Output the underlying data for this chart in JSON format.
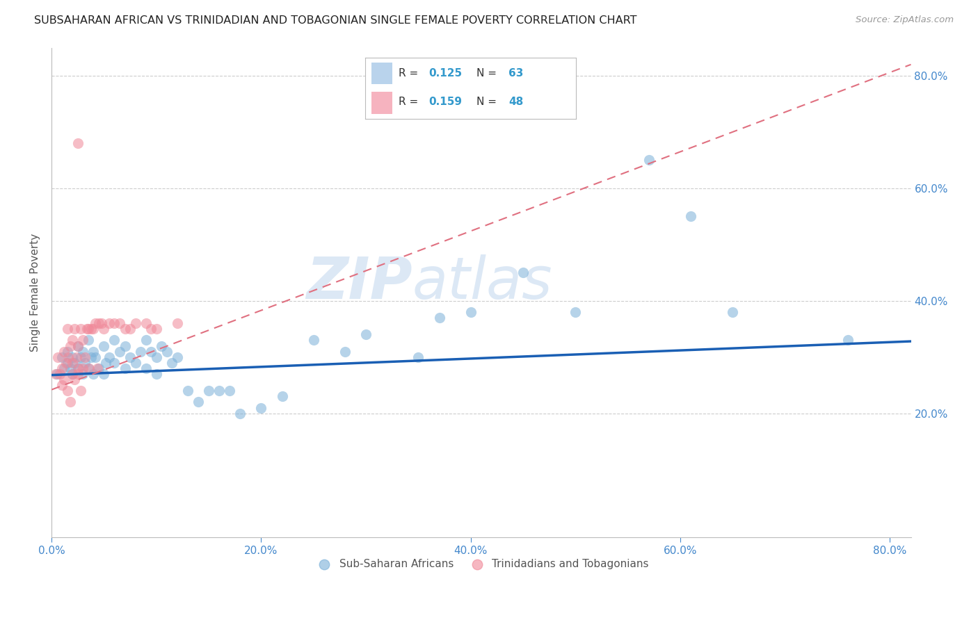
{
  "title": "SUBSAHARAN AFRICAN VS TRINIDADIAN AND TOBAGONIAN SINGLE FEMALE POVERTY CORRELATION CHART",
  "source": "Source: ZipAtlas.com",
  "ylabel": "Single Female Poverty",
  "right_ytick_labels": [
    "20.0%",
    "40.0%",
    "60.0%",
    "80.0%"
  ],
  "right_ytick_values": [
    0.2,
    0.4,
    0.6,
    0.8
  ],
  "xtick_labels": [
    "0.0%",
    "20.0%",
    "40.0%",
    "60.0%",
    "80.0%"
  ],
  "xtick_values": [
    0.0,
    0.2,
    0.4,
    0.6,
    0.8
  ],
  "xlim": [
    0.0,
    0.82
  ],
  "ylim": [
    -0.02,
    0.85
  ],
  "group1_color": "#7ab0d8",
  "group2_color": "#f08898",
  "trend1_color": "#1a5fb4",
  "trend2_color": "#e07080",
  "background_color": "#ffffff",
  "grid_color": "#cccccc",
  "title_color": "#222222",
  "axis_label_color": "#4488cc",
  "ylabel_color": "#555555",
  "watermark_color": "#dce8f5",
  "legend_r1": "0.125",
  "legend_n1": "63",
  "legend_r2": "0.159",
  "legend_n2": "48",
  "legend_color_highlight": "#3399cc",
  "legend_sq1": "#a8c8e8",
  "legend_sq2": "#f4a0b0",
  "group1_x": [
    0.005,
    0.01,
    0.012,
    0.015,
    0.015,
    0.018,
    0.02,
    0.02,
    0.022,
    0.025,
    0.025,
    0.028,
    0.03,
    0.03,
    0.032,
    0.035,
    0.035,
    0.038,
    0.04,
    0.04,
    0.042,
    0.045,
    0.05,
    0.05,
    0.052,
    0.055,
    0.06,
    0.06,
    0.065,
    0.07,
    0.07,
    0.075,
    0.08,
    0.085,
    0.09,
    0.09,
    0.095,
    0.1,
    0.1,
    0.105,
    0.11,
    0.115,
    0.12,
    0.13,
    0.14,
    0.15,
    0.16,
    0.17,
    0.18,
    0.2,
    0.22,
    0.25,
    0.28,
    0.3,
    0.35,
    0.37,
    0.4,
    0.45,
    0.5,
    0.57,
    0.61,
    0.65,
    0.76
  ],
  "group1_y": [
    0.27,
    0.3,
    0.28,
    0.31,
    0.29,
    0.28,
    0.3,
    0.27,
    0.29,
    0.32,
    0.28,
    0.3,
    0.31,
    0.27,
    0.29,
    0.33,
    0.28,
    0.3,
    0.31,
    0.27,
    0.3,
    0.28,
    0.32,
    0.27,
    0.29,
    0.3,
    0.33,
    0.29,
    0.31,
    0.32,
    0.28,
    0.3,
    0.29,
    0.31,
    0.33,
    0.28,
    0.31,
    0.3,
    0.27,
    0.32,
    0.31,
    0.29,
    0.3,
    0.24,
    0.22,
    0.24,
    0.24,
    0.24,
    0.2,
    0.21,
    0.23,
    0.33,
    0.31,
    0.34,
    0.3,
    0.37,
    0.38,
    0.45,
    0.38,
    0.65,
    0.55,
    0.38,
    0.33
  ],
  "group2_x": [
    0.004,
    0.006,
    0.008,
    0.01,
    0.01,
    0.012,
    0.012,
    0.014,
    0.015,
    0.015,
    0.016,
    0.018,
    0.018,
    0.02,
    0.02,
    0.02,
    0.022,
    0.022,
    0.024,
    0.025,
    0.025,
    0.026,
    0.028,
    0.028,
    0.03,
    0.03,
    0.032,
    0.034,
    0.035,
    0.036,
    0.038,
    0.04,
    0.042,
    0.044,
    0.045,
    0.048,
    0.05,
    0.055,
    0.06,
    0.065,
    0.07,
    0.075,
    0.08,
    0.09,
    0.095,
    0.1,
    0.12,
    0.025
  ],
  "group2_y": [
    0.27,
    0.3,
    0.27,
    0.28,
    0.25,
    0.31,
    0.26,
    0.29,
    0.35,
    0.24,
    0.3,
    0.32,
    0.22,
    0.33,
    0.29,
    0.27,
    0.35,
    0.26,
    0.3,
    0.32,
    0.27,
    0.28,
    0.35,
    0.24,
    0.33,
    0.28,
    0.3,
    0.35,
    0.35,
    0.28,
    0.35,
    0.35,
    0.36,
    0.28,
    0.36,
    0.36,
    0.35,
    0.36,
    0.36,
    0.36,
    0.35,
    0.35,
    0.36,
    0.36,
    0.35,
    0.35,
    0.36,
    0.68
  ],
  "trend1_x0": 0.0,
  "trend1_x1": 0.82,
  "trend1_y0": 0.268,
  "trend1_y1": 0.328,
  "trend2_x0": 0.0,
  "trend2_x1": 0.82,
  "trend2_y0": 0.242,
  "trend2_y1": 0.82
}
